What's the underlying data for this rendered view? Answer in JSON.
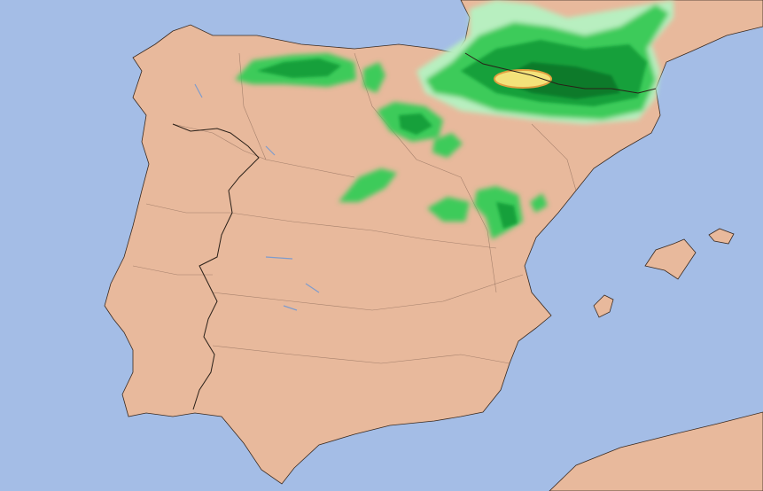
{
  "map": {
    "colors": {
      "sea": "#a4bde6",
      "land": "#e8b99c",
      "land_shade": "#d9a88a",
      "precip_light": "#b8efc0",
      "precip_medium": "#3ccb5a",
      "precip_heavy": "#12a03a",
      "precip_very_heavy": "#0a7a2c",
      "precip_peak": "#f3e27a",
      "precip_peak_edge": "#e0a040"
    }
  }
}
